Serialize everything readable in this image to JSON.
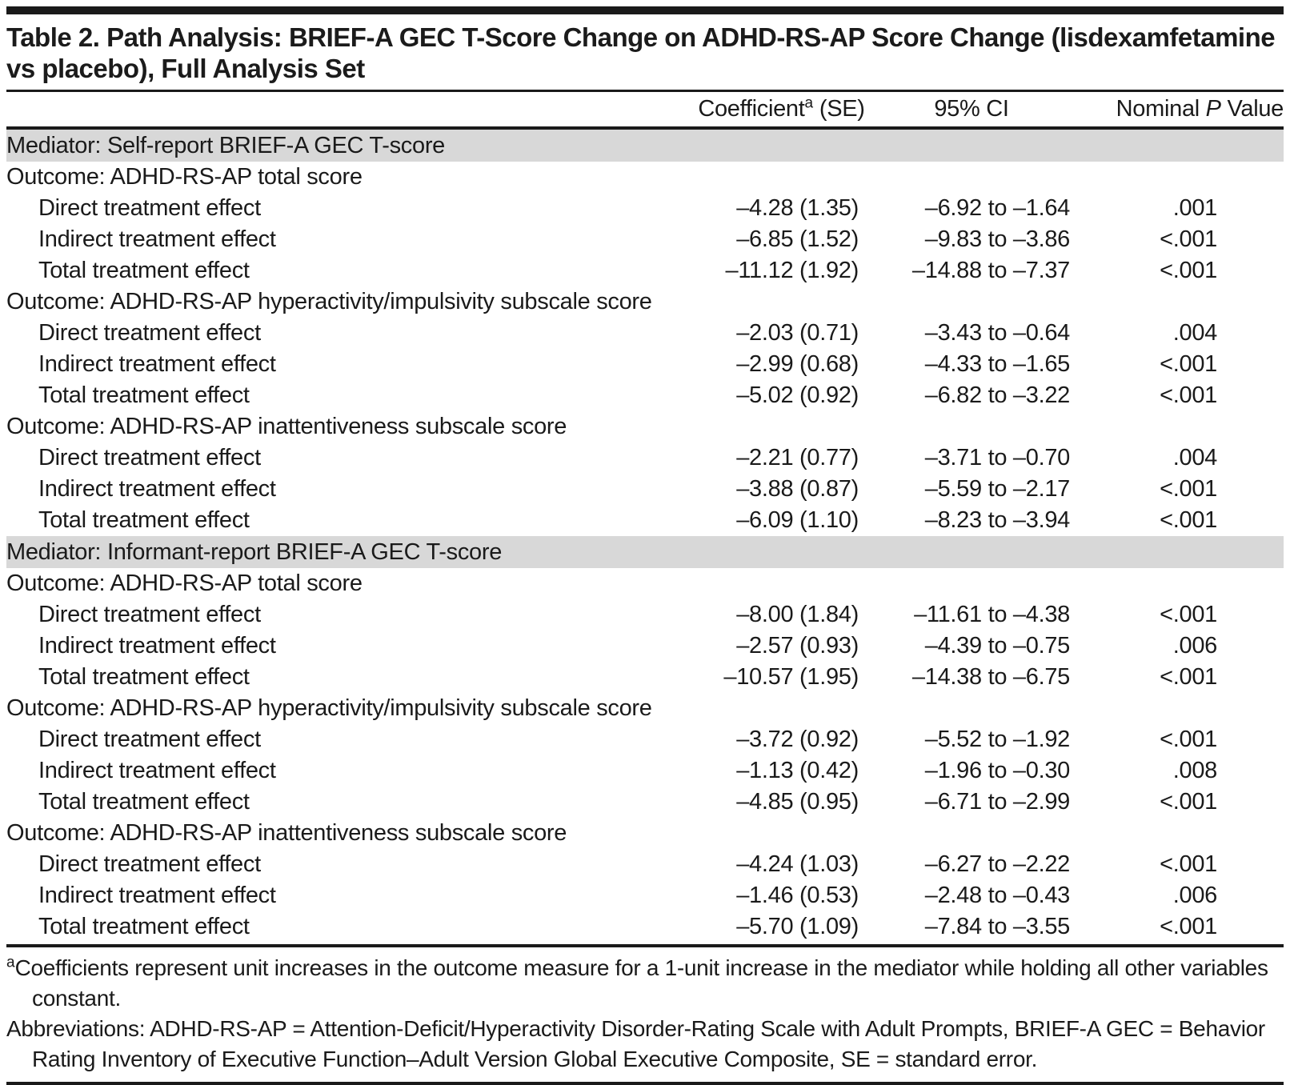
{
  "title": "Table 2. Path Analysis: BRIEF-A GEC T-Score Change on ADHD-RS-AP Score Change (lisdexamfetamine vs placebo), Full Analysis Set",
  "columns": {
    "coefficient": {
      "pre": "Coefficient",
      "sup": "a",
      "post": " (SE)"
    },
    "ci": "95% CI",
    "p": {
      "pre": "Nominal ",
      "italic": "P",
      "post": " Value"
    }
  },
  "rows": [
    {
      "type": "mediator",
      "label": "Mediator: Self-report BRIEF-A GEC T-score"
    },
    {
      "type": "outcome",
      "label": "Outcome: ADHD-RS-AP total score"
    },
    {
      "type": "effect",
      "label": "Direct treatment effect",
      "coef": "–4.28 (1.35)",
      "ci": "–6.92 to –1.64",
      "p": ".001"
    },
    {
      "type": "effect",
      "label": "Indirect treatment effect",
      "coef": "–6.85 (1.52)",
      "ci": "–9.83 to –3.86",
      "p": "<.001"
    },
    {
      "type": "effect",
      "label": "Total treatment effect",
      "coef": "–11.12 (1.92)",
      "ci": "–14.88 to –7.37",
      "p": "<.001"
    },
    {
      "type": "outcome",
      "label": "Outcome: ADHD-RS-AP hyperactivity/impulsivity subscale score"
    },
    {
      "type": "effect",
      "label": "Direct treatment effect",
      "coef": "–2.03 (0.71)",
      "ci": "–3.43 to –0.64",
      "p": ".004"
    },
    {
      "type": "effect",
      "label": "Indirect treatment effect",
      "coef": "–2.99 (0.68)",
      "ci": "–4.33 to –1.65",
      "p": "<.001"
    },
    {
      "type": "effect",
      "label": "Total treatment effect",
      "coef": "–5.02 (0.92)",
      "ci": "–6.82 to –3.22",
      "p": "<.001"
    },
    {
      "type": "outcome",
      "label": "Outcome: ADHD-RS-AP inattentiveness subscale score"
    },
    {
      "type": "effect",
      "label": "Direct treatment effect",
      "coef": "–2.21 (0.77)",
      "ci": "–3.71 to –0.70",
      "p": ".004"
    },
    {
      "type": "effect",
      "label": "Indirect treatment effect",
      "coef": "–3.88 (0.87)",
      "ci": "–5.59 to –2.17",
      "p": "<.001"
    },
    {
      "type": "effect",
      "label": "Total treatment effect",
      "coef": "–6.09 (1.10)",
      "ci": "–8.23 to –3.94",
      "p": "<.001"
    },
    {
      "type": "mediator",
      "label": "Mediator: Informant-report BRIEF-A GEC T-score"
    },
    {
      "type": "outcome",
      "label": "Outcome: ADHD-RS-AP total score"
    },
    {
      "type": "effect",
      "label": "Direct treatment effect",
      "coef": "–8.00 (1.84)",
      "ci": "–11.61 to –4.38",
      "p": "<.001"
    },
    {
      "type": "effect",
      "label": "Indirect treatment effect",
      "coef": "–2.57 (0.93)",
      "ci": "–4.39 to –0.75",
      "p": ".006"
    },
    {
      "type": "effect",
      "label": "Total treatment effect",
      "coef": "–10.57 (1.95)",
      "ci": "–14.38 to –6.75",
      "p": "<.001"
    },
    {
      "type": "outcome",
      "label": "Outcome: ADHD-RS-AP hyperactivity/impulsivity subscale score"
    },
    {
      "type": "effect",
      "label": "Direct treatment effect",
      "coef": "–3.72 (0.92)",
      "ci": "–5.52 to –1.92",
      "p": "<.001"
    },
    {
      "type": "effect",
      "label": "Indirect treatment effect",
      "coef": "–1.13 (0.42)",
      "ci": "–1.96 to –0.30",
      "p": ".008"
    },
    {
      "type": "effect",
      "label": "Total treatment effect",
      "coef": "–4.85 (0.95)",
      "ci": "–6.71 to –2.99",
      "p": "<.001"
    },
    {
      "type": "outcome",
      "label": "Outcome: ADHD-RS-AP inattentiveness subscale score"
    },
    {
      "type": "effect",
      "label": "Direct treatment effect",
      "coef": "–4.24 (1.03)",
      "ci": "–6.27 to –2.22",
      "p": "<.001"
    },
    {
      "type": "effect",
      "label": "Indirect treatment effect",
      "coef": "–1.46 (0.53)",
      "ci": "–2.48 to –0.43",
      "p": ".006"
    },
    {
      "type": "effect",
      "label": "Total treatment effect",
      "coef": "–5.70 (1.09)",
      "ci": "–7.84 to –3.55",
      "p": "<.001"
    }
  ],
  "footnotes": {
    "a_marker": "a",
    "a_text": "Coefficients represent unit increases in the outcome measure for a 1-unit increase in the mediator while holding all other variables constant.",
    "abbreviations": "Abbreviations: ADHD-RS-AP = Attention-Deficit/Hyperactivity Disorder-Rating Scale with Adult Prompts, BRIEF-A GEC = Behavior Rating Inventory of Executive Function–Adult Version Global Executive Composite, SE = standard error."
  },
  "colors": {
    "band": "#d8d8d8",
    "rule": "#1a1a1a",
    "text": "#1a1a1a"
  }
}
